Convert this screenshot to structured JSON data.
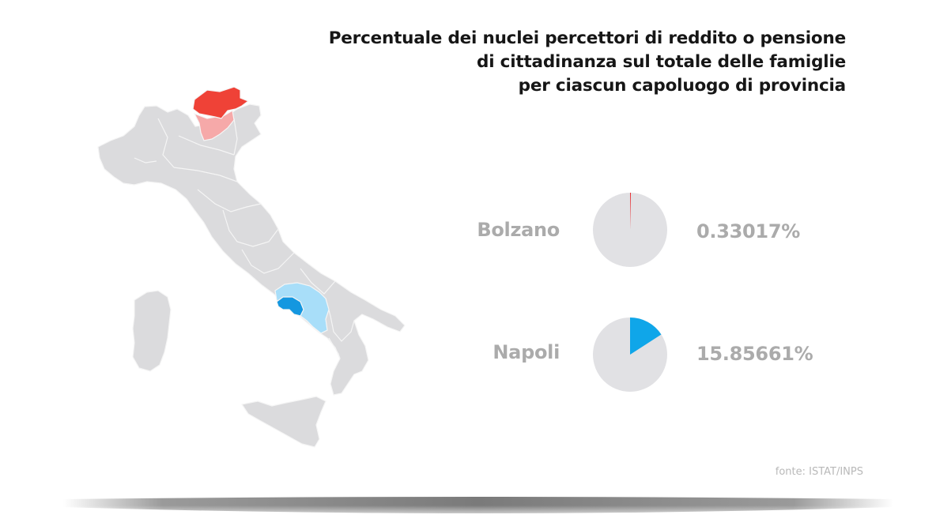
{
  "title_lines": [
    "Percentuale dei nuclei percettori di reddito o pensione",
    "di cittadinanza sul totale delle famiglie",
    "per ciascun capoluogo di provincia"
  ],
  "chart_data": {
    "type": "pie",
    "title": "Percentuale dei nuclei percettori di reddito o pensione di cittadinanza sul totale delle famiglie per ciascun capoluogo di provincia",
    "series": [
      {
        "name": "Bolzano",
        "value": 0.33017,
        "label": "0.33017%",
        "color": "#e8262a",
        "remainder_color": "#e1e1e4"
      },
      {
        "name": "Napoli",
        "value": 15.85661,
        "label": "15.85661%",
        "color": "#0fa6e9",
        "remainder_color": "#e1e1e4"
      }
    ]
  },
  "map": {
    "highlight_bolzano_color": "#ef4237",
    "highlight_trentino_color": "#f6a9a9",
    "highlight_napoli_color": "#1497e0",
    "highlight_campania_color": "#a8def9",
    "base_color": "#dbdbdd",
    "border_color": "#f5f5f5"
  },
  "source": "fonte: ISTAT/INPS"
}
